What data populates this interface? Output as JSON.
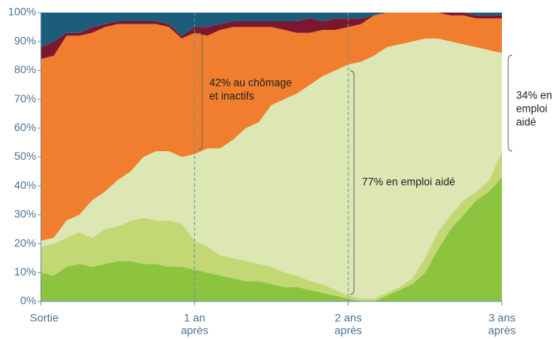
{
  "chart_data": {
    "type": "stacked_area",
    "x": [
      0,
      1,
      2,
      3,
      4,
      5,
      6,
      7,
      8,
      9,
      10,
      11,
      12,
      13,
      14,
      15,
      16,
      17,
      18,
      19,
      20,
      21,
      22,
      23,
      24,
      25,
      26,
      27,
      28,
      29,
      30,
      31,
      32,
      33,
      34,
      35,
      36
    ],
    "series": [
      {
        "color": "#8cc43f",
        "values": [
          10,
          9,
          12,
          13,
          12,
          13,
          14,
          14,
          13,
          13,
          12,
          12,
          11,
          10,
          9,
          8,
          7,
          7,
          6,
          5,
          5,
          4,
          3,
          2,
          1,
          0,
          0,
          2,
          4,
          6,
          10,
          18,
          25,
          30,
          35,
          38,
          43
        ]
      },
      {
        "color": "#c3d875",
        "values": [
          9,
          11,
          10,
          11,
          10,
          12,
          12,
          14,
          16,
          15,
          16,
          15,
          10,
          9,
          7,
          7,
          7,
          6,
          6,
          5,
          4,
          3,
          3,
          2,
          1,
          1,
          1,
          1,
          1,
          2,
          5,
          6,
          5,
          5,
          3,
          4,
          9
        ]
      },
      {
        "color": "#dce7b4",
        "values": [
          2,
          2,
          6,
          6,
          13,
          13,
          16,
          17,
          21,
          24,
          24,
          23,
          30,
          34,
          37,
          41,
          46,
          49,
          56,
          60,
          63,
          68,
          72,
          76,
          80,
          82,
          84,
          85,
          84,
          82,
          76,
          67,
          60,
          54,
          50,
          45,
          34
        ]
      },
      {
        "color": "#f07e2e",
        "values": [
          63,
          63,
          64,
          62,
          58,
          57,
          54,
          51,
          46,
          44,
          43,
          41,
          42,
          39,
          41,
          39,
          35,
          33,
          27,
          24,
          21,
          18,
          16,
          14,
          13,
          13,
          14,
          12,
          11,
          10,
          9,
          9,
          9,
          10,
          10,
          11,
          12
        ]
      },
      {
        "color": "#7b1830",
        "values": [
          4,
          5,
          1,
          1,
          2,
          1,
          1,
          1,
          1,
          1,
          1,
          1,
          2,
          3,
          2,
          2,
          2,
          2,
          2,
          3,
          4,
          5,
          3,
          4,
          3,
          2,
          0,
          0,
          0,
          0,
          0,
          0,
          1,
          1,
          1,
          1,
          1
        ]
      },
      {
        "color": "#1c5d7c",
        "values": [
          12,
          10,
          7,
          7,
          5,
          4,
          3,
          3,
          3,
          3,
          4,
          8,
          5,
          5,
          4,
          3,
          3,
          3,
          3,
          3,
          3,
          2,
          3,
          2,
          2,
          2,
          1,
          0,
          0,
          0,
          0,
          0,
          0,
          0,
          1,
          1,
          1
        ]
      }
    ],
    "xlim": [
      0,
      36
    ],
    "xticks": [
      {
        "value": 0,
        "label": [
          "Sortie"
        ]
      },
      {
        "value": 12,
        "label": [
          "1 an",
          "après"
        ]
      },
      {
        "value": 24,
        "label": [
          "2 ans",
          "après"
        ]
      },
      {
        "value": 36,
        "label": [
          "3 ans",
          "après"
        ]
      }
    ],
    "ylim": [
      0,
      100
    ],
    "yticks": [
      {
        "value": 0,
        "label": "0%"
      },
      {
        "value": 10,
        "label": "10%"
      },
      {
        "value": 20,
        "label": "20%"
      },
      {
        "value": 30,
        "label": "30%"
      },
      {
        "value": 40,
        "label": "40%"
      },
      {
        "value": 50,
        "label": "50%"
      },
      {
        "value": 60,
        "label": "60%"
      },
      {
        "value": 70,
        "label": "70%"
      },
      {
        "value": 80,
        "label": "80%"
      },
      {
        "value": 90,
        "label": "90%"
      },
      {
        "value": 100,
        "label": "100%"
      }
    ],
    "annotations": [
      [
        "42% au chômage",
        "et inactifs"
      ],
      [
        "77% en emploi aidé"
      ],
      [
        "34% en",
        "emploi",
        "aidé"
      ]
    ]
  }
}
